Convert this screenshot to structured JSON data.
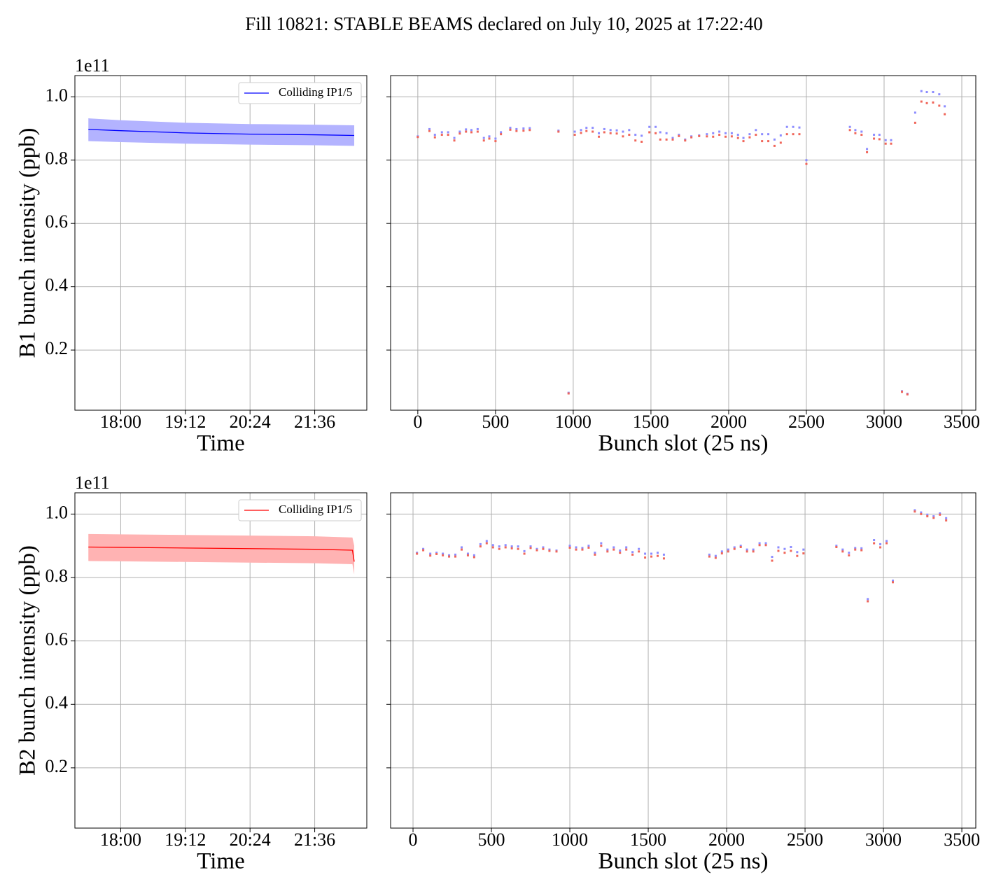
{
  "title": "Fill 10821: STABLE BEAMS declared on July 10, 2025 at 17:22:40",
  "chart_data": [
    {
      "type": "line",
      "xlabel": "Time",
      "ylabel": "B1 bunch intensity (ppb)",
      "offset_label": "1e11",
      "x": [
        "17:24",
        "18:00",
        "19:12",
        "20:24",
        "21:36",
        "22:20"
      ],
      "xlim": [
        "17:09",
        "22:34"
      ],
      "xticks": [
        "18:00",
        "19:12",
        "20:24",
        "21:36"
      ],
      "ylim": [
        0.01,
        1.067
      ],
      "yticks": [
        0.2,
        0.4,
        0.6,
        0.8,
        {
          "value": 1,
          "label": "1.0"
        }
      ],
      "grid": true,
      "legend": "upper right",
      "series": [
        {
          "name": "Colliding IP1/5",
          "color": "#0000ff",
          "band_color": "#b3b3ff",
          "values": [
            0.897,
            0.893,
            0.886,
            0.882,
            0.88,
            0.878
          ],
          "upper": [
            0.932,
            0.926,
            0.918,
            0.914,
            0.912,
            0.91
          ],
          "lower": [
            0.86,
            0.857,
            0.852,
            0.849,
            0.847,
            0.845
          ]
        }
      ]
    },
    {
      "type": "scatter",
      "xlabel": "Bunch slot (25 ns)",
      "xlim": [
        -175,
        3590
      ],
      "xticks": [
        0,
        500,
        1000,
        1500,
        2000,
        2500,
        3000,
        3500
      ],
      "ylim": [
        0.01,
        1.067
      ],
      "yticks": [
        0.2,
        0.4,
        0.6,
        0.8,
        1
      ],
      "grid": true,
      "x": [
        0,
        75,
        110,
        155,
        195,
        235,
        270,
        310,
        345,
        385,
        425,
        460,
        500,
        535,
        595,
        635,
        680,
        720,
        905,
        970,
        1010,
        1050,
        1085,
        1125,
        1165,
        1200,
        1240,
        1280,
        1320,
        1360,
        1400,
        1440,
        1490,
        1530,
        1560,
        1600,
        1640,
        1680,
        1720,
        1760,
        1810,
        1860,
        1900,
        1940,
        1980,
        2020,
        2060,
        2095,
        2135,
        2175,
        2215,
        2255,
        2295,
        2335,
        2375,
        2415,
        2455,
        2500,
        2780,
        2815,
        2855,
        2890,
        2935,
        2970,
        3010,
        3045,
        3115,
        3150,
        3200,
        3240,
        3275,
        3315,
        3355,
        3390
      ],
      "series": [
        {
          "color": "#8c8cff",
          "values": [
            0.875,
            0.898,
            0.88,
            0.888,
            0.888,
            0.87,
            0.89,
            0.897,
            0.895,
            0.898,
            0.87,
            0.875,
            0.868,
            0.888,
            0.902,
            0.898,
            0.9,
            0.901,
            0.893,
            0.065,
            0.89,
            0.895,
            0.902,
            0.902,
            0.885,
            0.898,
            0.895,
            0.894,
            0.89,
            0.895,
            0.88,
            0.877,
            0.905,
            0.905,
            0.888,
            0.885,
            0.87,
            0.88,
            0.865,
            0.875,
            0.878,
            0.882,
            0.885,
            0.89,
            0.885,
            0.885,
            0.88,
            0.87,
            0.882,
            0.895,
            0.882,
            0.882,
            0.865,
            0.878,
            0.905,
            0.905,
            0.903,
            0.8,
            0.905,
            0.895,
            0.89,
            0.835,
            0.88,
            0.88,
            0.863,
            0.863,
            0.07,
            0.062,
            0.95,
            1.018,
            1.015,
            1.015,
            1.008,
            0.97
          ]
        },
        {
          "color": "#f0665a",
          "values": [
            0.873,
            0.892,
            0.872,
            0.88,
            0.88,
            0.862,
            0.884,
            0.89,
            0.888,
            0.89,
            0.862,
            0.868,
            0.86,
            0.882,
            0.896,
            0.892,
            0.893,
            0.895,
            0.89,
            0.063,
            0.88,
            0.886,
            0.892,
            0.89,
            0.874,
            0.888,
            0.885,
            0.884,
            0.875,
            0.88,
            0.862,
            0.858,
            0.888,
            0.885,
            0.865,
            0.865,
            0.865,
            0.876,
            0.862,
            0.872,
            0.876,
            0.875,
            0.874,
            0.88,
            0.874,
            0.875,
            0.87,
            0.86,
            0.872,
            0.88,
            0.86,
            0.86,
            0.845,
            0.855,
            0.882,
            0.882,
            0.882,
            0.788,
            0.895,
            0.885,
            0.88,
            0.825,
            0.868,
            0.866,
            0.852,
            0.852,
            0.068,
            0.06,
            0.918,
            0.985,
            0.98,
            0.982,
            0.972,
            0.945
          ]
        }
      ]
    },
    {
      "type": "line",
      "xlabel": "Time",
      "ylabel": "B2 bunch intensity (ppb)",
      "offset_label": "1e11",
      "x": [
        "17:24",
        "18:00",
        "19:12",
        "20:24",
        "21:36",
        "22:18",
        "22:20"
      ],
      "xlim": [
        "17:09",
        "22:34"
      ],
      "xticks": [
        "18:00",
        "19:12",
        "20:24",
        "21:36"
      ],
      "ylim": [
        0.01,
        1.067
      ],
      "yticks": [
        0.2,
        0.4,
        0.6,
        0.8,
        {
          "value": 1,
          "label": "1.0"
        }
      ],
      "grid": true,
      "legend": "upper right",
      "series": [
        {
          "name": "Colliding IP1/5",
          "color": "#ff0000",
          "band_color": "#ffb3b3",
          "values": [
            0.896,
            0.895,
            0.893,
            0.891,
            0.889,
            0.886,
            0.85
          ],
          "upper": [
            0.937,
            0.936,
            0.934,
            0.932,
            0.93,
            0.926,
            0.9
          ],
          "lower": [
            0.852,
            0.851,
            0.849,
            0.847,
            0.845,
            0.842,
            0.81
          ]
        }
      ]
    },
    {
      "type": "scatter",
      "xlabel": "Bunch slot (25 ns)",
      "xlim": [
        -143,
        3589
      ],
      "xticks": [
        0,
        500,
        1000,
        1500,
        2000,
        2500,
        3000,
        3500
      ],
      "ylim": [
        0.01,
        1.067
      ],
      "yticks": [
        0.2,
        0.4,
        0.6,
        0.8,
        1
      ],
      "grid": true,
      "x": [
        25,
        65,
        110,
        150,
        190,
        230,
        270,
        310,
        350,
        390,
        430,
        470,
        510,
        550,
        590,
        630,
        670,
        710,
        750,
        790,
        830,
        870,
        915,
        1000,
        1040,
        1080,
        1120,
        1160,
        1200,
        1240,
        1280,
        1320,
        1360,
        1400,
        1440,
        1480,
        1520,
        1560,
        1600,
        1890,
        1930,
        1970,
        2010,
        2050,
        2090,
        2130,
        2170,
        2210,
        2250,
        2290,
        2330,
        2370,
        2410,
        2450,
        2490,
        2700,
        2740,
        2780,
        2820,
        2860,
        2900,
        2940,
        2980,
        3020,
        3060,
        3200,
        3240,
        3280,
        3320,
        3360,
        3400
      ],
      "series": [
        {
          "color": "#8c8cff",
          "values": [
            0.878,
            0.89,
            0.875,
            0.878,
            0.875,
            0.87,
            0.872,
            0.895,
            0.875,
            0.87,
            0.905,
            0.915,
            0.902,
            0.898,
            0.902,
            0.898,
            0.898,
            0.883,
            0.898,
            0.89,
            0.895,
            0.888,
            0.885,
            0.9,
            0.895,
            0.893,
            0.9,
            0.878,
            0.908,
            0.888,
            0.895,
            0.885,
            0.895,
            0.88,
            0.89,
            0.875,
            0.875,
            0.878,
            0.872,
            0.872,
            0.868,
            0.882,
            0.888,
            0.895,
            0.9,
            0.888,
            0.888,
            0.908,
            0.908,
            0.865,
            0.895,
            0.89,
            0.896,
            0.88,
            0.888,
            0.9,
            0.888,
            0.878,
            0.893,
            0.892,
            0.732,
            0.918,
            0.905,
            0.915,
            0.79,
            1.012,
            1.005,
            0.998,
            0.993,
            1.002,
            0.987
          ]
        },
        {
          "color": "#f0665a",
          "values": [
            0.875,
            0.886,
            0.869,
            0.874,
            0.87,
            0.866,
            0.866,
            0.888,
            0.87,
            0.864,
            0.898,
            0.908,
            0.895,
            0.89,
            0.895,
            0.892,
            0.89,
            0.875,
            0.893,
            0.886,
            0.89,
            0.884,
            0.882,
            0.894,
            0.888,
            0.888,
            0.894,
            0.872,
            0.9,
            0.882,
            0.888,
            0.878,
            0.888,
            0.872,
            0.882,
            0.863,
            0.866,
            0.868,
            0.86,
            0.866,
            0.862,
            0.876,
            0.882,
            0.89,
            0.896,
            0.882,
            0.882,
            0.902,
            0.902,
            0.853,
            0.884,
            0.878,
            0.884,
            0.868,
            0.876,
            0.896,
            0.882,
            0.87,
            0.888,
            0.886,
            0.725,
            0.908,
            0.895,
            0.908,
            0.785,
            1.008,
            1.0,
            0.993,
            0.988,
            0.998,
            0.98
          ]
        }
      ]
    }
  ]
}
